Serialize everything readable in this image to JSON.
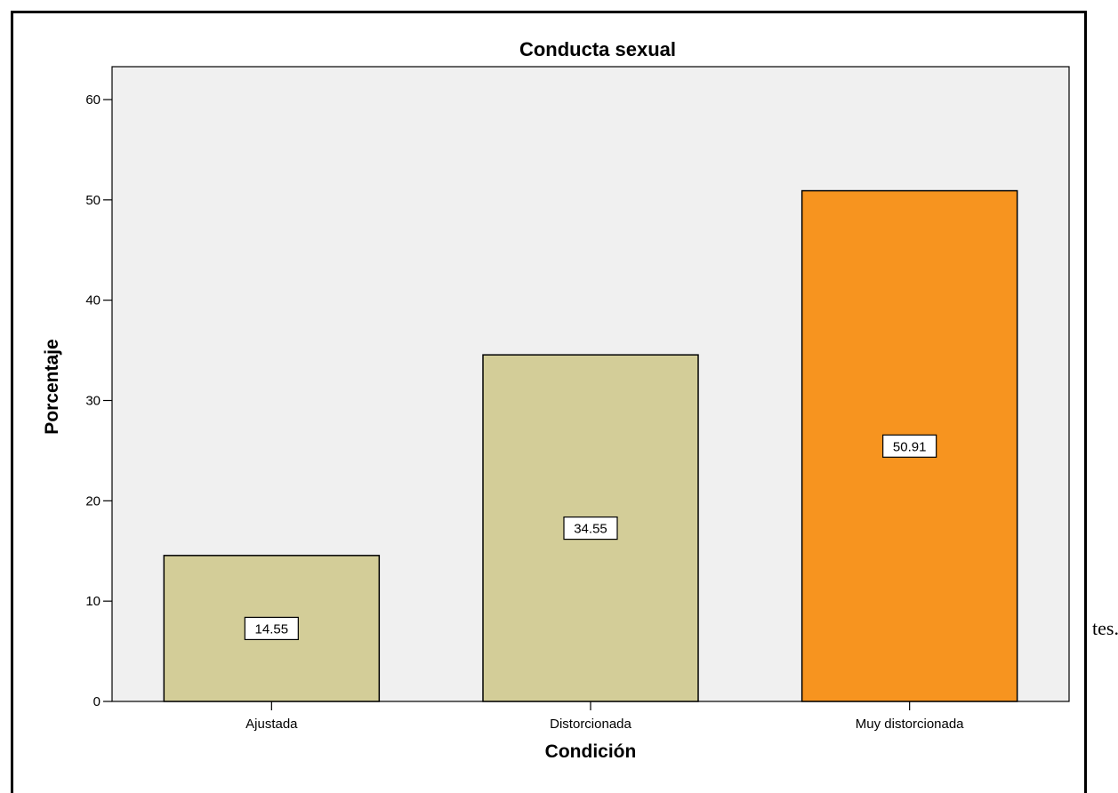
{
  "trailing_text": "tes.",
  "chart_data": {
    "type": "bar",
    "title": "Conducta sexual",
    "xlabel": "Condición",
    "ylabel": "Porcentaje",
    "categories": [
      "Ajustada",
      "Distorcionada",
      "Muy distorcionada"
    ],
    "values": [
      14.55,
      34.55,
      50.91
    ],
    "data_labels": [
      "14.55",
      "34.55",
      "50.91"
    ],
    "bar_colors": [
      "#d3cd98",
      "#d3cd98",
      "#f7941f"
    ],
    "plot_background": "#f0f0f0",
    "ylim": [
      0,
      63
    ],
    "yticks": [
      0,
      10,
      20,
      30,
      40,
      50,
      60
    ],
    "ytick_labels": [
      "0",
      "10",
      "20",
      "30",
      "40",
      "50",
      "60"
    ],
    "grid": false,
    "legend": "none"
  }
}
